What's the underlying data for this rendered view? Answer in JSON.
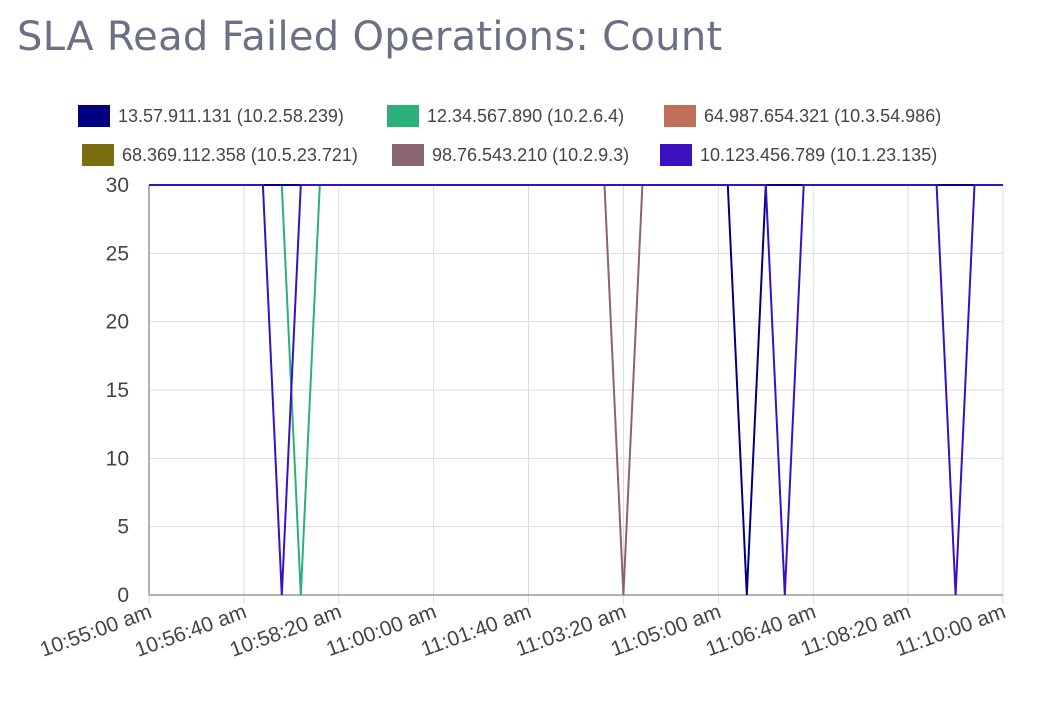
{
  "title": "SLA Read Failed Operations: Count",
  "chart_data": {
    "type": "line",
    "title": "SLA Read Failed Operations: Count",
    "xlabel": "",
    "ylabel": "",
    "ylim": [
      0,
      30
    ],
    "y_ticks": [
      "0",
      "5",
      "10",
      "15",
      "20",
      "25",
      "30"
    ],
    "x_ticks": [
      "10:55:00 am",
      "10:56:40 am",
      "10:58:20 am",
      "11:00:00 am",
      "11:01:40 am",
      "11:03:20 am",
      "11:05:00 am",
      "11:06:40 am",
      "11:08:20 am",
      "11:10:00 am"
    ],
    "grid": true,
    "legend_position": "top",
    "series": [
      {
        "name": "13.57.911.131 (10.2.58.239)",
        "color": "#000080",
        "points": [
          [
            "10:55:00",
            30
          ],
          [
            "11:05:10",
            30
          ],
          [
            "11:05:30",
            0
          ],
          [
            "11:05:50",
            30
          ],
          [
            "11:10:00",
            30
          ]
        ]
      },
      {
        "name": "12.34.567.890 (10.2.6.4)",
        "color": "#2bb07a",
        "points": [
          [
            "10:55:00",
            30
          ],
          [
            "10:57:20",
            30
          ],
          [
            "10:57:40",
            0
          ],
          [
            "10:58:00",
            30
          ],
          [
            "11:10:00",
            30
          ]
        ]
      },
      {
        "name": "64.987.654.321 (10.3.54.986)",
        "color": "#c0705a",
        "points": [
          [
            "10:55:00",
            30
          ],
          [
            "11:10:00",
            30
          ]
        ]
      },
      {
        "name": "68.369.112.358 (10.5.23.721)",
        "color": "#7a6e10",
        "points": [
          [
            "10:55:00",
            30
          ],
          [
            "11:10:00",
            30
          ]
        ]
      },
      {
        "name": "98.76.543.210 (10.2.9.3)",
        "color": "#8a6470",
        "points": [
          [
            "10:55:00",
            30
          ],
          [
            "11:03:00",
            30
          ],
          [
            "11:03:20",
            0
          ],
          [
            "11:03:40",
            30
          ],
          [
            "11:10:00",
            30
          ]
        ]
      },
      {
        "name": "10.123.456.789 (10.1.23.135)",
        "color": "#3a10c0",
        "points": [
          [
            "10:55:00",
            30
          ],
          [
            "10:57:00",
            30
          ],
          [
            "10:57:20",
            0
          ],
          [
            "10:57:40",
            30
          ],
          [
            "11:05:50",
            30
          ],
          [
            "11:06:10",
            0
          ],
          [
            "11:06:30",
            30
          ],
          [
            "11:08:50",
            30
          ],
          [
            "11:09:10",
            0
          ],
          [
            "11:09:30",
            30
          ],
          [
            "11:10:00",
            30
          ]
        ]
      }
    ]
  }
}
